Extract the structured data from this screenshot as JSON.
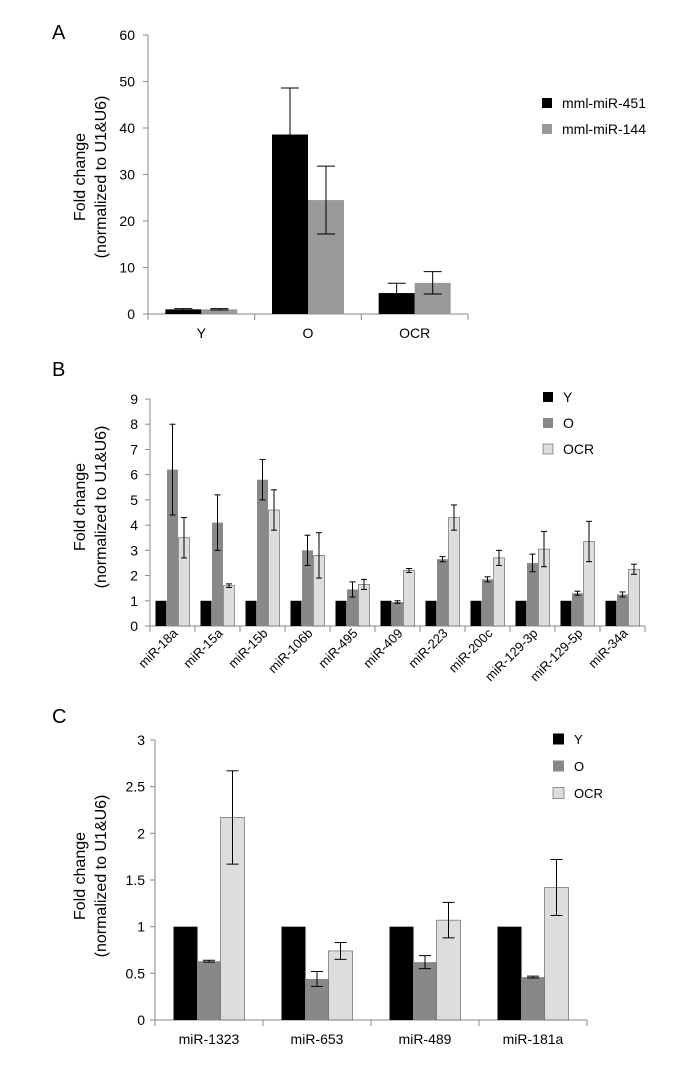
{
  "chart_data": [
    {
      "panel": "A",
      "type": "bar",
      "title": "",
      "ylabel_line1": "Fold change",
      "ylabel_line2": "(normalized to U1&U6)",
      "xlabel": "",
      "ylim": [
        0,
        60
      ],
      "yticks": [
        0,
        10,
        20,
        30,
        40,
        50,
        60
      ],
      "ytick_labels": [
        "0",
        "10",
        "20",
        "30",
        "40",
        "50",
        "60"
      ],
      "categories": [
        "Y",
        "O",
        "OCR"
      ],
      "series": [
        {
          "name": "mml-miR-451",
          "color": "#000000",
          "values": [
            1,
            38.6,
            4.5
          ],
          "errors": [
            0.15,
            10,
            2.1
          ]
        },
        {
          "name": "mml-miR-144",
          "color": "#999999",
          "values": [
            1,
            24.5,
            6.7
          ],
          "errors": [
            0.15,
            7.3,
            2.4
          ]
        }
      ],
      "legend": "right"
    },
    {
      "panel": "B",
      "type": "bar",
      "title": "",
      "ylabel_line1": "Fold change",
      "ylabel_line2": "(normalized to U1&U6)",
      "xlabel": "",
      "ylim": [
        0,
        9
      ],
      "yticks": [
        0,
        1,
        2,
        3,
        4,
        5,
        6,
        7,
        8,
        9
      ],
      "ytick_labels": [
        "0",
        "1",
        "2",
        "3",
        "4",
        "5",
        "6",
        "7",
        "8",
        "9"
      ],
      "categories": [
        "miR-18a",
        "miR-15a",
        "miR-15b",
        "miR-106b",
        "miR-495",
        "miR-409",
        "miR-223",
        "miR-200c",
        "miR-129-3p",
        "miR-129-5p",
        "miR-34a"
      ],
      "series": [
        {
          "name": "Y",
          "color": "#000000",
          "values": [
            1,
            1,
            1,
            1,
            1,
            1,
            1,
            1,
            1,
            1,
            1
          ],
          "errors": [
            0,
            0,
            0,
            0,
            0,
            0,
            0,
            0,
            0,
            0,
            0
          ]
        },
        {
          "name": "O",
          "color": "#888888",
          "values": [
            6.2,
            4.1,
            5.8,
            3.0,
            1.45,
            0.95,
            2.65,
            1.85,
            2.5,
            1.3,
            1.25
          ],
          "errors": [
            1.8,
            1.1,
            0.8,
            0.6,
            0.3,
            0.05,
            0.1,
            0.1,
            0.35,
            0.08,
            0.1
          ]
        },
        {
          "name": "OCR",
          "color": "#dddddd",
          "values": [
            3.5,
            1.6,
            4.6,
            2.8,
            1.65,
            2.2,
            4.3,
            2.7,
            3.05,
            3.35,
            2.25
          ],
          "errors": [
            0.8,
            0.07,
            0.8,
            0.9,
            0.2,
            0.08,
            0.5,
            0.3,
            0.7,
            0.8,
            0.2
          ]
        }
      ],
      "legend": "top-right"
    },
    {
      "panel": "C",
      "type": "bar",
      "title": "",
      "ylabel_line1": "Fold change",
      "ylabel_line2": "(normalized to U1&U6)",
      "xlabel": "",
      "ylim": [
        0,
        3
      ],
      "yticks": [
        0,
        0.5,
        1,
        1.5,
        2,
        2.5,
        3
      ],
      "ytick_labels": [
        "0",
        "0.5",
        "1",
        "1.5",
        "2",
        "2.5",
        "3"
      ],
      "categories": [
        "miR-1323",
        "miR-653",
        "miR-489",
        "miR-181a"
      ],
      "series": [
        {
          "name": "Y",
          "color": "#000000",
          "values": [
            1,
            1,
            1,
            1
          ],
          "errors": [
            0,
            0,
            0,
            0
          ]
        },
        {
          "name": "O",
          "color": "#888888",
          "values": [
            0.63,
            0.44,
            0.62,
            0.46
          ],
          "errors": [
            0.01,
            0.08,
            0.07,
            0.01
          ]
        },
        {
          "name": "OCR",
          "color": "#dddddd",
          "values": [
            2.17,
            0.74,
            1.07,
            1.42
          ],
          "errors": [
            0.5,
            0.09,
            0.19,
            0.3
          ]
        }
      ],
      "legend": "top-right"
    }
  ]
}
